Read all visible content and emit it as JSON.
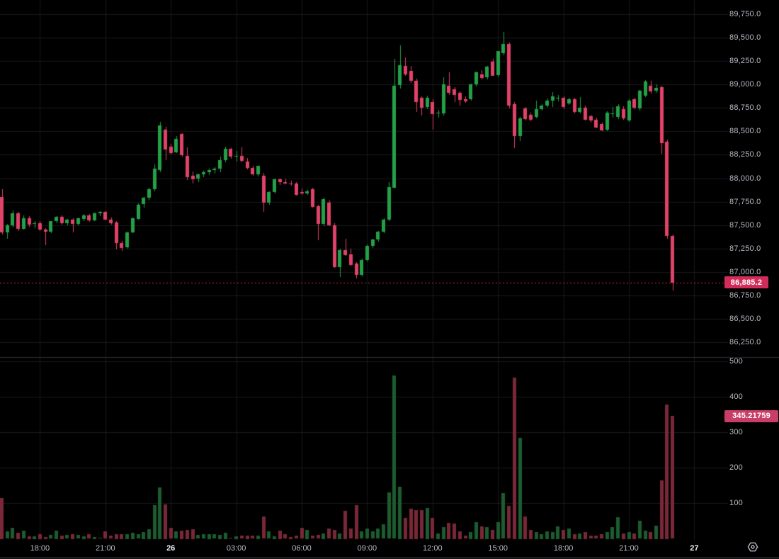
{
  "ui": {
    "price_badge": "86,885.2",
    "volume_badge": "345.21759",
    "colors": {
      "background": "#000000",
      "grid_h": "#1a1a1c",
      "grid_v": "#18181a",
      "up": "#24a147",
      "down": "#e04268",
      "volume_up": "#1d5c2f",
      "volume_down": "#7a2838",
      "axis_text": "#b7bcc6",
      "axis_text_emphasis": "#edeff2",
      "price_badge_bg": "#d22d5a",
      "volume_badge_bg": "#c93e69",
      "current_price_line": "#d22d5a",
      "pane_separator": "#2e2f33",
      "bottom_border": "#55565c",
      "gear_icon": "#b7bcc6"
    }
  },
  "chart_data": {
    "type": "candlestick",
    "panes": [
      "price",
      "volume"
    ],
    "grid": true,
    "legend": "none",
    "last_price_label": "86,885.2",
    "last_volume_label": "345.21759",
    "price_axis": {
      "min": 86250,
      "max": 89750,
      "step": 250,
      "levels": [
        89750,
        89500,
        89250,
        89000,
        88750,
        88500,
        88250,
        88000,
        87750,
        87500,
        87250,
        87000,
        86750,
        86500,
        86250
      ],
      "labels": [
        "89,750.0",
        "89,500.0",
        "89,250.0",
        "89,000.0",
        "88,750.0",
        "88,500.0",
        "88,250.0",
        "88,000.0",
        "87,750.0",
        "87,500.0",
        "87,250.0",
        "87,000.0",
        "86,750.0",
        "86,500.0",
        "86,250.0"
      ]
    },
    "volume_axis": {
      "min": 0,
      "max": 500,
      "step": 100,
      "levels": [
        500,
        400,
        300,
        200,
        100
      ],
      "labels": [
        "500",
        "400",
        "300",
        "200",
        "100"
      ]
    },
    "x_ticks": [
      {
        "index": 7,
        "label": "18:00",
        "emphasis": false
      },
      {
        "index": 19,
        "label": "21:00",
        "emphasis": false
      },
      {
        "index": 31,
        "label": "26",
        "emphasis": true
      },
      {
        "index": 43,
        "label": "03:00",
        "emphasis": false
      },
      {
        "index": 55,
        "label": "06:00",
        "emphasis": false
      },
      {
        "index": 67,
        "label": "09:00",
        "emphasis": false
      },
      {
        "index": 79,
        "label": "12:00",
        "emphasis": false
      },
      {
        "index": 91,
        "label": "15:00",
        "emphasis": false
      },
      {
        "index": 103,
        "label": "18:00",
        "emphasis": false
      },
      {
        "index": 115,
        "label": "21:00",
        "emphasis": false
      },
      {
        "index": 127,
        "label": "27",
        "emphasis": true
      }
    ],
    "candle_fields": [
      "open",
      "high",
      "low",
      "close",
      "volume"
    ],
    "candles": [
      [
        87800,
        87880,
        87395,
        87425,
        115
      ],
      [
        87425,
        87515,
        87360,
        87500,
        20
      ],
      [
        87500,
        87655,
        87470,
        87625,
        30
      ],
      [
        87625,
        87640,
        87435,
        87460,
        17
      ],
      [
        87460,
        87600,
        87450,
        87575,
        22
      ],
      [
        87575,
        87595,
        87480,
        87510,
        7
      ],
      [
        87510,
        87545,
        87470,
        87520,
        7
      ],
      [
        87520,
        87545,
        87440,
        87450,
        13
      ],
      [
        87450,
        87465,
        87280,
        87430,
        5
      ],
      [
        87430,
        87545,
        87420,
        87540,
        10
      ],
      [
        87540,
        87595,
        87520,
        87585,
        23
      ],
      [
        87585,
        87600,
        87505,
        87520,
        9
      ],
      [
        87520,
        87565,
        87500,
        87555,
        10
      ],
      [
        87555,
        87570,
        87420,
        87510,
        13
      ],
      [
        87510,
        87580,
        87495,
        87570,
        10
      ],
      [
        87570,
        87620,
        87545,
        87605,
        7
      ],
      [
        87605,
        87615,
        87530,
        87550,
        12
      ],
      [
        87550,
        87630,
        87540,
        87625,
        5
      ],
      [
        87625,
        87650,
        87600,
        87640,
        2
      ],
      [
        87640,
        87650,
        87550,
        87560,
        20
      ],
      [
        87560,
        87580,
        87505,
        87520,
        8
      ],
      [
        87530,
        87545,
        87240,
        87310,
        13
      ],
      [
        87310,
        87330,
        87225,
        87260,
        13
      ],
      [
        87260,
        87430,
        87250,
        87420,
        13
      ],
      [
        87420,
        87580,
        87410,
        87570,
        17
      ],
      [
        87570,
        87730,
        87555,
        87720,
        12
      ],
      [
        87720,
        87800,
        87690,
        87790,
        19
      ],
      [
        87790,
        87895,
        87760,
        87880,
        27
      ],
      [
        87880,
        88150,
        87860,
        88100,
        95
      ],
      [
        88080,
        88600,
        88060,
        88560,
        145
      ],
      [
        88520,
        88545,
        88190,
        88310,
        97
      ],
      [
        88340,
        88370,
        88255,
        88270,
        30
      ],
      [
        88280,
        88450,
        88270,
        88420,
        20
      ],
      [
        88470,
        88480,
        88230,
        88240,
        23
      ],
      [
        88240,
        88330,
        87980,
        88010,
        25
      ],
      [
        88030,
        88075,
        87950,
        87995,
        27
      ],
      [
        87995,
        88050,
        87960,
        88040,
        10
      ],
      [
        88040,
        88080,
        88015,
        88065,
        12
      ],
      [
        88065,
        88105,
        88035,
        88085,
        13
      ],
      [
        88085,
        88120,
        88055,
        88100,
        12
      ],
      [
        88100,
        88230,
        88060,
        88190,
        11
      ],
      [
        88190,
        88335,
        88165,
        88310,
        17
      ],
      [
        88310,
        88320,
        88210,
        88230,
        2
      ],
      [
        88230,
        88290,
        88180,
        88235,
        7
      ],
      [
        88235,
        88330,
        88170,
        88180,
        8
      ],
      [
        88180,
        88215,
        88095,
        88110,
        9
      ],
      [
        88110,
        88135,
        88030,
        88040,
        8
      ],
      [
        88040,
        88130,
        88020,
        88130,
        9
      ],
      [
        88030,
        88055,
        87640,
        87740,
        62
      ],
      [
        87740,
        87860,
        87720,
        87855,
        20
      ],
      [
        87855,
        88000,
        87840,
        87990,
        7
      ],
      [
        87990,
        88000,
        87930,
        87960,
        23
      ],
      [
        87960,
        87985,
        87935,
        87945,
        12
      ],
      [
        87945,
        87975,
        87920,
        87940,
        5
      ],
      [
        87940,
        87955,
        87810,
        87820,
        8
      ],
      [
        87855,
        87890,
        87825,
        87840,
        30
      ],
      [
        87840,
        87875,
        87820,
        87860,
        25
      ],
      [
        87880,
        87895,
        87680,
        87690,
        8
      ],
      [
        87700,
        87720,
        87340,
        87510,
        10
      ],
      [
        87510,
        87790,
        87490,
        87775,
        15
      ],
      [
        87740,
        87760,
        87490,
        87500,
        28
      ],
      [
        87500,
        87520,
        87040,
        87055,
        25
      ],
      [
        87055,
        87245,
        86940,
        87235,
        15
      ],
      [
        87235,
        87350,
        87170,
        87185,
        79
      ],
      [
        87185,
        87245,
        87060,
        87070,
        28
      ],
      [
        87090,
        87105,
        86930,
        86970,
        95
      ],
      [
        86970,
        87140,
        86950,
        87130,
        20
      ],
      [
        87130,
        87290,
        87110,
        87280,
        28
      ],
      [
        87280,
        87355,
        87260,
        87345,
        20
      ],
      [
        87345,
        87440,
        87330,
        87430,
        28
      ],
      [
        87430,
        87575,
        87420,
        87560,
        40
      ],
      [
        87560,
        87960,
        87545,
        87905,
        130
      ],
      [
        87905,
        89270,
        87890,
        88990,
        460
      ],
      [
        88990,
        89420,
        88960,
        89205,
        147
      ],
      [
        89195,
        89290,
        89090,
        89105,
        59
      ],
      [
        89145,
        89200,
        89020,
        89040,
        85
      ],
      [
        89040,
        89065,
        88710,
        88810,
        81
      ],
      [
        88855,
        88870,
        88665,
        88750,
        80
      ],
      [
        88760,
        88880,
        88740,
        88860,
        87
      ],
      [
        88815,
        88840,
        88515,
        88690,
        58
      ],
      [
        88690,
        88730,
        88650,
        88700,
        15
      ],
      [
        88690,
        89080,
        88670,
        89000,
        33
      ],
      [
        88985,
        89130,
        88890,
        88910,
        45
      ],
      [
        88945,
        88975,
        88820,
        88885,
        43
      ],
      [
        88910,
        88925,
        88775,
        88835,
        21
      ],
      [
        88845,
        88870,
        88800,
        88820,
        8
      ],
      [
        88845,
        89010,
        88825,
        89000,
        19
      ],
      [
        89000,
        89140,
        88980,
        89130,
        47
      ],
      [
        89110,
        89150,
        89050,
        89075,
        35
      ],
      [
        89075,
        89200,
        89060,
        89190,
        33
      ],
      [
        89245,
        89270,
        89085,
        89095,
        25
      ],
      [
        89095,
        89360,
        89080,
        89355,
        47
      ],
      [
        89330,
        89560,
        89310,
        89430,
        128
      ],
      [
        89430,
        89445,
        88740,
        88770,
        92
      ],
      [
        88790,
        88810,
        88320,
        88450,
        455
      ],
      [
        88450,
        88655,
        88400,
        88640,
        285
      ],
      [
        88745,
        88760,
        88620,
        88635,
        63
      ],
      [
        88680,
        88700,
        88610,
        88625,
        25
      ],
      [
        88655,
        88830,
        88640,
        88740,
        19
      ],
      [
        88740,
        88790,
        88720,
        88775,
        13
      ],
      [
        88775,
        88850,
        88760,
        88830,
        21
      ],
      [
        88830,
        88915,
        88760,
        88875,
        19
      ],
      [
        88850,
        88890,
        88820,
        88860,
        35
      ],
      [
        88860,
        88875,
        88740,
        88760,
        25
      ],
      [
        88800,
        88855,
        88780,
        88845,
        28
      ],
      [
        88845,
        88860,
        88695,
        88710,
        13
      ],
      [
        88710,
        88865,
        88690,
        88755,
        15
      ],
      [
        88755,
        88775,
        88615,
        88625,
        19
      ],
      [
        88660,
        88680,
        88600,
        88615,
        8
      ],
      [
        88625,
        88645,
        88530,
        88545,
        8
      ],
      [
        88580,
        88595,
        88505,
        88515,
        12
      ],
      [
        88515,
        88715,
        88500,
        88700,
        19
      ],
      [
        88680,
        88760,
        88650,
        88690,
        33
      ],
      [
        88650,
        88790,
        88630,
        88765,
        60
      ],
      [
        88740,
        88765,
        88620,
        88640,
        15
      ],
      [
        88615,
        88840,
        88600,
        88830,
        19
      ],
      [
        88840,
        88855,
        88735,
        88750,
        15
      ],
      [
        88740,
        88940,
        88720,
        88930,
        50
      ],
      [
        88880,
        89045,
        88860,
        89030,
        23
      ],
      [
        88990,
        89040,
        88905,
        88930,
        19
      ],
      [
        88935,
        89000,
        88910,
        88965,
        37
      ],
      [
        88970,
        88990,
        88265,
        88375,
        165
      ],
      [
        88390,
        88410,
        87355,
        87385,
        379
      ],
      [
        87385,
        87400,
        86805,
        86885.2,
        345.21759
      ]
    ]
  }
}
